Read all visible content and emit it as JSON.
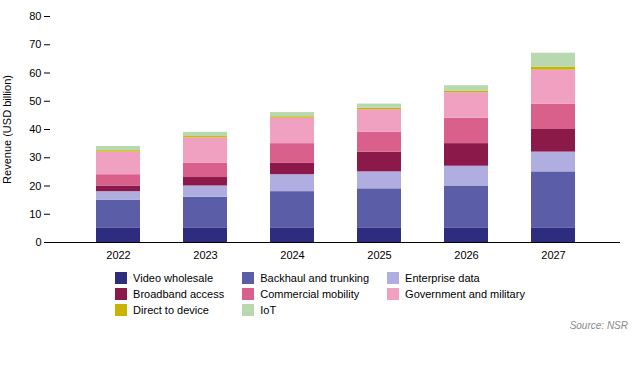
{
  "chart_data": {
    "type": "bar",
    "stacked": true,
    "categories": [
      "2022",
      "2023",
      "2024",
      "2025",
      "2026",
      "2027"
    ],
    "series": [
      {
        "name": "Video wholesale",
        "color": "#2e2c7e",
        "values": [
          5,
          5,
          5,
          5,
          5,
          5
        ]
      },
      {
        "name": "Backhaul and trunking",
        "color": "#5b5ea6",
        "values": [
          10,
          11,
          13,
          14,
          15,
          20
        ]
      },
      {
        "name": "Enterprise data",
        "color": "#b0aee0",
        "values": [
          3,
          4,
          6,
          6,
          7,
          7
        ]
      },
      {
        "name": "Broadband access",
        "color": "#8b1a4a",
        "values": [
          2,
          3,
          4,
          7,
          8,
          8
        ]
      },
      {
        "name": "Commercial mobility",
        "color": "#d9608a",
        "values": [
          4,
          5,
          7,
          7,
          9,
          9
        ]
      },
      {
        "name": "Government and military",
        "color": "#f0a0c0",
        "values": [
          8,
          9,
          9,
          8,
          9,
          12
        ]
      },
      {
        "name": "Direct to device",
        "color": "#c8b400",
        "values": [
          0.5,
          0.5,
          0.5,
          0.5,
          0.5,
          1
        ]
      },
      {
        "name": "IoT",
        "color": "#b8d8b0",
        "values": [
          1.5,
          1.5,
          1.5,
          1.5,
          2,
          5
        ]
      }
    ],
    "ylabel": "Revenue (USD billion)",
    "ylim": [
      0,
      80
    ],
    "yticks": [
      0,
      10,
      20,
      30,
      40,
      50,
      60,
      70,
      80
    ],
    "grid": false,
    "legend": "bottom",
    "annotations": [
      "Source: NSR"
    ]
  }
}
